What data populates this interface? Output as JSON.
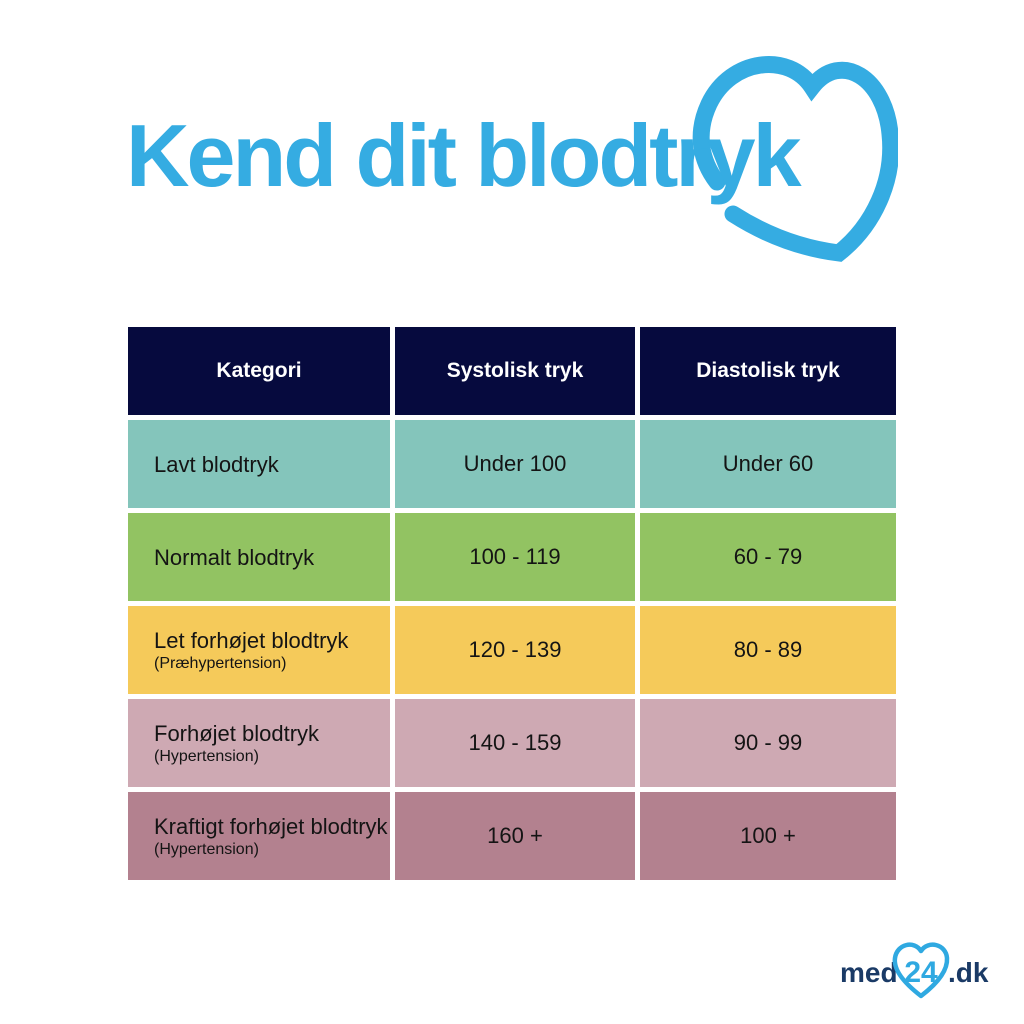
{
  "title": "Kend dit blodtryk",
  "colors": {
    "accent_blue": "#35ACE2",
    "header_navy": "#060A3E",
    "logo_navy": "#1A3A66",
    "logo_blue": "#2FA9E1",
    "row_low": "#84C5BB",
    "row_normal": "#92C362",
    "row_slightly_elevated": "#F5CA5A",
    "row_elevated": "#CEA9B3",
    "row_severely_elevated": "#B3818F"
  },
  "chart_data": {
    "type": "table",
    "title": "Kend dit blodtryk",
    "columns": [
      "Kategori",
      "Systolisk tryk",
      "Diastolisk tryk"
    ],
    "rows": [
      {
        "kategori": "Lavt blodtryk",
        "subtitle": "",
        "systolisk": "Under 100",
        "diastolisk": "Under 60",
        "row_color": "#84C5BB"
      },
      {
        "kategori": "Normalt blodtryk",
        "subtitle": "",
        "systolisk": "100 - 119",
        "diastolisk": "60 - 79",
        "row_color": "#92C362"
      },
      {
        "kategori": "Let forhøjet blodtryk",
        "subtitle": "(Præhypertension)",
        "systolisk": "120 - 139",
        "diastolisk": "80 - 89",
        "row_color": "#F5CA5A"
      },
      {
        "kategori": "Forhøjet blodtryk",
        "subtitle": "(Hypertension)",
        "systolisk": "140 - 159",
        "diastolisk": "90 - 99",
        "row_color": "#CEA9B3"
      },
      {
        "kategori": "Kraftigt forhøjet blodtryk",
        "subtitle": "(Hypertension)",
        "systolisk": "160 +",
        "diastolisk": "100 +",
        "row_color": "#B3818F"
      }
    ],
    "legend_position": "none",
    "grid": false
  },
  "branding": {
    "logo_med": "med",
    "logo_24": "24",
    "logo_dk": ".dk"
  }
}
